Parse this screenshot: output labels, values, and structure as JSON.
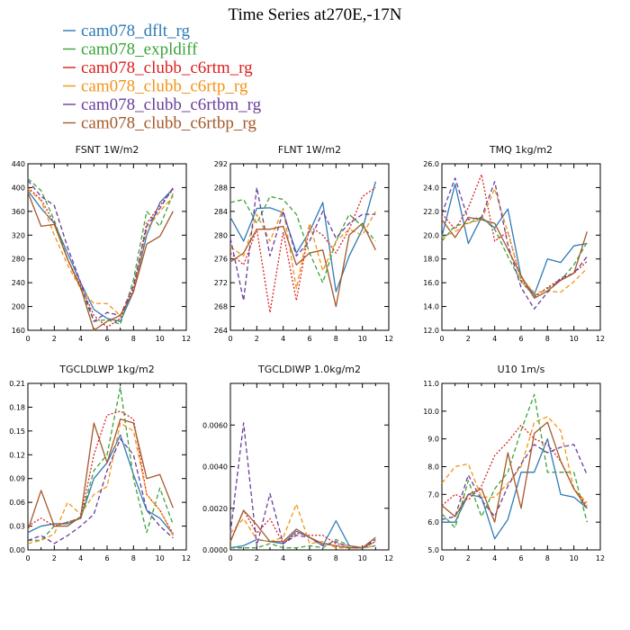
{
  "figure": {
    "title": "Time Series at270E,-17N"
  },
  "legend": [
    {
      "name": "cam078_dflt_rg",
      "color": "#2f7bb6",
      "dash": "solid"
    },
    {
      "name": "cam078_expldiff",
      "color": "#3aa33a",
      "dash": "dashed"
    },
    {
      "name": "cam078_clubb_c6rtm_rg",
      "color": "#dc1f1f",
      "dash": "dotted"
    },
    {
      "name": "cam078_clubb_c6rtp_rg",
      "color": "#f29418",
      "dash": "dashed"
    },
    {
      "name": "cam078_clubb_c6rtbm_rg",
      "color": "#6a3d9a",
      "dash": "dashed"
    },
    {
      "name": "cam078_clubb_c6rtbp_rg",
      "color": "#a4592a",
      "dash": "solid"
    }
  ],
  "chart_data": [
    {
      "type": "line",
      "title": "FSNT 1W/m2",
      "x": [
        0,
        1,
        2,
        3,
        4,
        5,
        6,
        7,
        8,
        9,
        10,
        11
      ],
      "xlim": [
        0,
        12
      ],
      "xticks": [
        "0",
        "2",
        "4",
        "6",
        "8",
        "10",
        "12"
      ],
      "ylim": [
        160,
        440
      ],
      "yticks": [
        "160",
        "200",
        "240",
        "280",
        "320",
        "360",
        "400",
        "440"
      ],
      "series": [
        {
          "name": "cam078_dflt_rg",
          "values": [
            395,
            365,
            340,
            290,
            240,
            195,
            180,
            175,
            225,
            320,
            375,
            398
          ]
        },
        {
          "name": "cam078_expldiff",
          "values": [
            415,
            395,
            345,
            280,
            230,
            175,
            178,
            170,
            245,
            360,
            335,
            390
          ]
        },
        {
          "name": "cam078_clubb_c6rtm_rg",
          "values": [
            400,
            380,
            340,
            280,
            235,
            185,
            165,
            180,
            230,
            340,
            370,
            397
          ]
        },
        {
          "name": "cam078_clubb_c6rtp_rg",
          "values": [
            398,
            378,
            320,
            270,
            230,
            205,
            205,
            185,
            225,
            330,
            360,
            385
          ]
        },
        {
          "name": "cam078_clubb_c6rtbm_rg",
          "values": [
            412,
            385,
            370,
            300,
            240,
            175,
            190,
            185,
            235,
            335,
            365,
            400
          ]
        },
        {
          "name": "cam078_clubb_c6rtbp_rg",
          "values": [
            392,
            335,
            338,
            280,
            232,
            160,
            175,
            185,
            225,
            305,
            318,
            360
          ]
        }
      ]
    },
    {
      "type": "line",
      "title": "FLNT 1W/m2",
      "x": [
        0,
        1,
        2,
        3,
        4,
        5,
        6,
        7,
        8,
        9,
        10,
        11
      ],
      "xlim": [
        0,
        12
      ],
      "xticks": [
        "0",
        "2",
        "4",
        "6",
        "8",
        "10",
        "12"
      ],
      "ylim": [
        264,
        292
      ],
      "yticks": [
        "264",
        "268",
        "272",
        "276",
        "280",
        "284",
        "288",
        "292"
      ],
      "series": [
        {
          "name": "cam078_dflt_rg",
          "values": [
            283,
            279,
            284.5,
            284.6,
            283.8,
            277,
            280.6,
            285.5,
            270.5,
            276.5,
            281,
            289
          ]
        },
        {
          "name": "cam078_expldiff",
          "values": [
            285.5,
            286,
            282,
            286.5,
            286,
            283.5,
            277,
            272,
            279,
            283.5,
            281.5,
            279
          ]
        },
        {
          "name": "cam078_clubb_c6rtm_rg",
          "values": [
            277,
            275,
            281,
            267,
            280.5,
            269,
            281.5,
            280,
            277,
            281,
            286.5,
            288
          ]
        },
        {
          "name": "cam078_clubb_c6rtp_rg",
          "values": [
            278,
            276.5,
            283.5,
            279,
            284.5,
            271,
            282,
            274,
            279,
            281,
            280,
            284
          ]
        },
        {
          "name": "cam078_clubb_c6rtbm_rg",
          "values": [
            279.5,
            269,
            288,
            276.5,
            284,
            276.5,
            279,
            284,
            279.5,
            282,
            283.5,
            283.5
          ]
        },
        {
          "name": "cam078_clubb_c6rtbp_rg",
          "values": [
            275.5,
            277,
            281,
            281,
            281.5,
            275,
            277,
            277.5,
            268,
            280,
            282,
            277.5
          ]
        }
      ]
    },
    {
      "type": "line",
      "title": "TMQ 1kg/m2",
      "x": [
        0,
        1,
        2,
        3,
        4,
        5,
        6,
        7,
        8,
        9,
        10,
        11
      ],
      "xlim": [
        0,
        12
      ],
      "xticks": [
        "0",
        "2",
        "4",
        "6",
        "8",
        "10",
        "12"
      ],
      "ylim": [
        12,
        26
      ],
      "yticks": [
        "12.0",
        "14.0",
        "16.0",
        "18.0",
        "20.0",
        "22.0",
        "24.0",
        "26.0"
      ],
      "series": [
        {
          "name": "cam078_dflt_rg",
          "values": [
            19.9,
            24.3,
            19.3,
            21.5,
            20.6,
            22.2,
            16.5,
            15.0,
            18.0,
            17.7,
            19.1,
            19.3
          ]
        },
        {
          "name": "cam078_expldiff",
          "values": [
            19.5,
            20.8,
            21.0,
            21.5,
            20.5,
            18.2,
            16.1,
            14.9,
            15.5,
            16.2,
            17.5,
            19.4
          ]
        },
        {
          "name": "cam078_clubb_c6rtm_rg",
          "values": [
            21.8,
            20.5,
            22.3,
            25.1,
            19.5,
            20.3,
            16.2,
            14.8,
            15.6,
            16.3,
            16.8,
            17.8
          ]
        },
        {
          "name": "cam078_clubb_c6rtp_rg",
          "values": [
            19.8,
            20.3,
            21.0,
            21.3,
            23.9,
            20.2,
            16.3,
            15.2,
            15.3,
            15.2,
            16.1,
            17.2
          ]
        },
        {
          "name": "cam078_clubb_c6rtbm_rg",
          "values": [
            21.8,
            24.8,
            21.3,
            21.5,
            24.5,
            19.2,
            15.6,
            13.8,
            15.2,
            16.4,
            16.8,
            18.2
          ]
        },
        {
          "name": "cam078_clubb_c6rtbp_rg",
          "values": [
            21.3,
            19.8,
            21.5,
            21.3,
            21.0,
            18.8,
            16.6,
            14.7,
            15.3,
            16.2,
            16.8,
            20.3
          ]
        }
      ]
    },
    {
      "type": "line",
      "title": "TGCLDLWP 1kg/m2",
      "x": [
        0,
        1,
        2,
        3,
        4,
        5,
        6,
        7,
        8,
        9,
        10,
        11
      ],
      "xlim": [
        0,
        12
      ],
      "xticks": [
        "0",
        "2",
        "4",
        "6",
        "8",
        "10",
        "12"
      ],
      "ylim": [
        0,
        0.21
      ],
      "yticks": [
        "0.00",
        "0.03",
        "0.06",
        "0.09",
        "0.12",
        "0.15",
        "0.18",
        "0.21"
      ],
      "series": [
        {
          "name": "cam078_dflt_rg",
          "values": [
            0.022,
            0.03,
            0.033,
            0.033,
            0.04,
            0.09,
            0.11,
            0.145,
            0.095,
            0.05,
            0.04,
            0.02
          ]
        },
        {
          "name": "cam078_expldiff",
          "values": [
            0.012,
            0.012,
            0.03,
            0.035,
            0.04,
            0.1,
            0.12,
            0.205,
            0.09,
            0.022,
            0.078,
            0.032
          ]
        },
        {
          "name": "cam078_clubb_c6rtm_rg",
          "values": [
            0.03,
            0.04,
            0.03,
            0.035,
            0.04,
            0.12,
            0.17,
            0.175,
            0.165,
            0.07,
            0.05,
            0.02
          ]
        },
        {
          "name": "cam078_clubb_c6rtp_rg",
          "values": [
            0.008,
            0.012,
            0.02,
            0.06,
            0.045,
            0.07,
            0.08,
            0.16,
            0.15,
            0.07,
            0.05,
            0.018
          ]
        },
        {
          "name": "cam078_clubb_c6rtbm_rg",
          "values": [
            0.012,
            0.018,
            0.008,
            0.018,
            0.03,
            0.045,
            0.1,
            0.14,
            0.12,
            0.05,
            0.03,
            0.015
          ]
        },
        {
          "name": "cam078_clubb_c6rtbp_rg",
          "values": [
            0.025,
            0.075,
            0.03,
            0.03,
            0.042,
            0.16,
            0.11,
            0.165,
            0.16,
            0.09,
            0.095,
            0.053
          ]
        }
      ]
    },
    {
      "type": "line",
      "title": "TGCLDIWP 1.0kg/m2",
      "x": [
        0,
        1,
        2,
        3,
        4,
        5,
        6,
        7,
        8,
        9,
        10,
        11
      ],
      "xlim": [
        0,
        12
      ],
      "xticks": [
        "0",
        "2",
        "4",
        "6",
        "8",
        "10",
        "12"
      ],
      "ylim": [
        0,
        0.008
      ],
      "yticks": [
        "0.0000",
        "0.0020",
        "0.0040",
        "0.0060"
      ],
      "series": [
        {
          "name": "cam078_dflt_rg",
          "values": [
            0.0001,
            0.0002,
            0.0005,
            0.0004,
            0.0003,
            0.0009,
            0.0006,
            0.0002,
            0.0014,
            0.0002,
            0.0001,
            0.0002
          ]
        },
        {
          "name": "cam078_expldiff",
          "values": [
            0.0001,
            0.0001,
            0.0001,
            0.0003,
            0.0001,
            0.0001,
            0.0002,
            0.0001,
            0.0005,
            0.0002,
            0.0001,
            0.0004
          ]
        },
        {
          "name": "cam078_clubb_c6rtm_rg",
          "values": [
            0.0004,
            0.0019,
            0.0008,
            0.0015,
            0.0003,
            0.0008,
            0.0007,
            0.0007,
            0.0003,
            0.0002,
            0.0001,
            0.0004
          ]
        },
        {
          "name": "cam078_clubb_c6rtp_rg",
          "values": [
            0.0008,
            0.0015,
            0.0005,
            0.0004,
            0.0006,
            0.0022,
            0.0003,
            0.0004,
            0.0001,
            0.0001,
            0.0001,
            0.0002
          ]
        },
        {
          "name": "cam078_clubb_c6rtbm_rg",
          "values": [
            0.0008,
            0.0061,
            0.0002,
            0.0027,
            0.0003,
            0.0007,
            0.0006,
            0.0002,
            0.0004,
            0.0001,
            0.0001,
            0.0005
          ]
        },
        {
          "name": "cam078_clubb_c6rtbp_rg",
          "values": [
            0.0004,
            0.0019,
            0.0012,
            0.0004,
            0.0004,
            0.001,
            0.0006,
            0.0003,
            0.0002,
            0.0001,
            0.0001,
            0.0006
          ]
        }
      ]
    },
    {
      "type": "line",
      "title": "U10 1m/s",
      "x": [
        0,
        1,
        2,
        3,
        4,
        5,
        6,
        7,
        8,
        9,
        10,
        11
      ],
      "xlim": [
        0,
        12
      ],
      "xticks": [
        "0",
        "2",
        "4",
        "6",
        "8",
        "10",
        "12"
      ],
      "ylim": [
        5,
        11
      ],
      "yticks": [
        "5.0",
        "6.0",
        "7.0",
        "8.0",
        "9.0",
        "10.0",
        "11.0"
      ],
      "series": [
        {
          "name": "cam078_dflt_rg",
          "values": [
            6.0,
            6.0,
            7.0,
            6.9,
            5.4,
            6.1,
            7.8,
            7.8,
            9.0,
            7.0,
            6.9,
            6.5
          ]
        },
        {
          "name": "cam078_expldiff",
          "values": [
            6.3,
            5.8,
            7.5,
            6.2,
            7.2,
            7.8,
            9.3,
            10.6,
            7.8,
            7.8,
            7.8,
            6.0
          ]
        },
        {
          "name": "cam078_clubb_c6rtm_rg",
          "values": [
            6.6,
            7.0,
            6.8,
            7.3,
            8.4,
            8.9,
            9.5,
            9.0,
            8.8,
            8.2,
            7.2,
            6.6
          ]
        },
        {
          "name": "cam078_clubb_c6rtp_rg",
          "values": [
            7.4,
            8.0,
            8.1,
            6.9,
            6.9,
            7.4,
            8.0,
            9.6,
            9.8,
            9.3,
            7.2,
            6.7
          ]
        },
        {
          "name": "cam078_clubb_c6rtbm_rg",
          "values": [
            6.1,
            6.2,
            7.7,
            6.8,
            6.2,
            7.3,
            8.1,
            8.8,
            8.5,
            8.7,
            8.8,
            7.7
          ]
        },
        {
          "name": "cam078_clubb_c6rtbp_rg",
          "values": [
            6.6,
            6.2,
            7.0,
            7.2,
            6.0,
            8.5,
            6.5,
            9.2,
            9.6,
            8.2,
            7.2,
            6.5
          ]
        }
      ]
    }
  ]
}
